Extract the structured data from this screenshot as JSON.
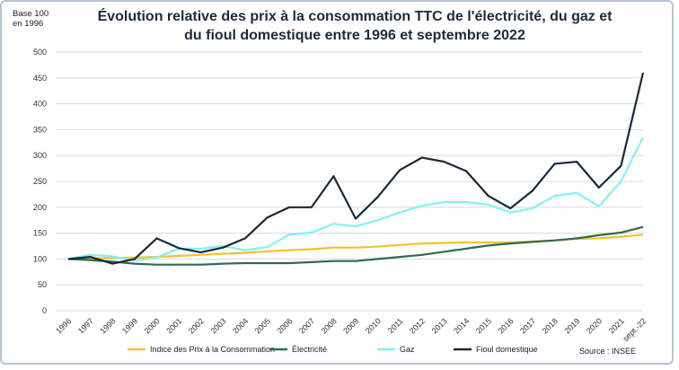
{
  "chart_data": {
    "type": "line",
    "title": "Évolution relative des prix à la consommation TTC de l'électricité, du gaz et du fioul domestique entre 1996 et septembre 2022",
    "title_line1": "Évolution relative des prix à la consommation TTC de l'électricité, du gaz et",
    "title_line2": "du fioul domestique entre 1996 et septembre 2022",
    "ylabel_line1": "Base 100",
    "ylabel_line2": "en 1996",
    "source": "Source : INSEE",
    "ylim": [
      0,
      500
    ],
    "yticks": [
      0,
      50,
      100,
      150,
      200,
      250,
      300,
      350,
      400,
      450,
      500
    ],
    "grid": true,
    "legend_position": "bottom",
    "categories": [
      "1996",
      "1997",
      "1998",
      "1999",
      "2000",
      "2001",
      "2002",
      "2003",
      "2004",
      "2005",
      "2006",
      "2007",
      "2008",
      "2009",
      "2010",
      "2011",
      "2012",
      "2013",
      "2014",
      "2015",
      "2016",
      "2017",
      "2018",
      "2019",
      "2020",
      "2021",
      "sept.-22"
    ],
    "series": [
      {
        "name": "Indice des Prix à la Consommation",
        "color": "#f5c12e",
        "values": [
          100,
          101,
          102,
          103,
          104,
          106,
          108,
          110,
          112,
          115,
          117,
          119,
          122,
          122,
          124,
          127,
          130,
          131,
          132,
          132,
          132,
          134,
          136,
          139,
          140,
          143,
          147
        ]
      },
      {
        "name": "Électricité",
        "color": "#2e6b4f",
        "values": [
          100,
          98,
          95,
          91,
          89,
          89,
          89,
          91,
          92,
          92,
          92,
          94,
          96,
          96,
          100,
          104,
          108,
          114,
          120,
          126,
          130,
          133,
          136,
          140,
          146,
          151,
          162
        ]
      },
      {
        "name": "Gaz",
        "color": "#7ef3f5",
        "values": [
          100,
          108,
          105,
          97,
          103,
          120,
          120,
          125,
          117,
          123,
          147,
          151,
          168,
          163,
          175,
          190,
          203,
          210,
          210,
          205,
          190,
          198,
          222,
          228,
          202,
          250,
          335
        ]
      },
      {
        "name": "Fioul domestique",
        "color": "#1b2838",
        "values": [
          100,
          104,
          91,
          100,
          140,
          121,
          113,
          122,
          140,
          180,
          200,
          200,
          260,
          178,
          220,
          272,
          296,
          288,
          270,
          222,
          198,
          232,
          284,
          288,
          238,
          280,
          460
        ]
      }
    ]
  }
}
